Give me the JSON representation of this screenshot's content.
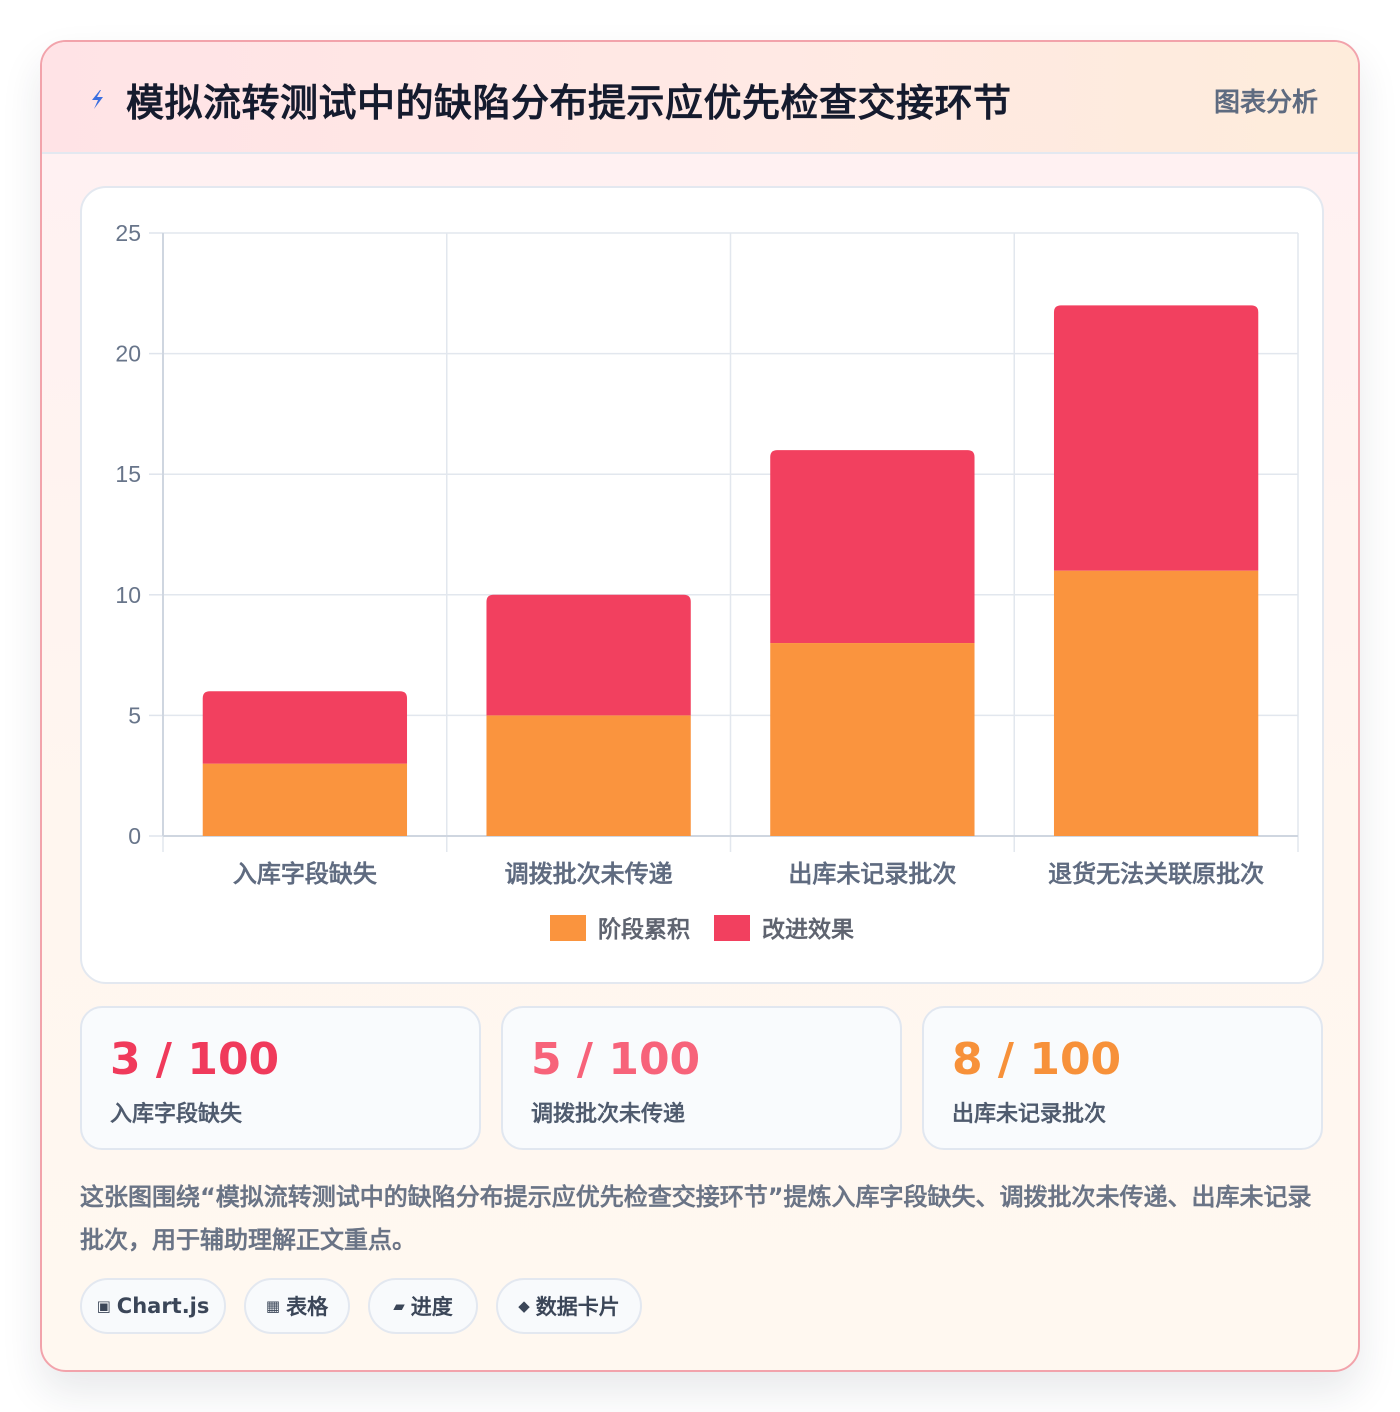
{
  "header": {
    "icon": "lightning-bolt-icon",
    "title": "模拟流转测试中的缺陷分布提示应优先检查交接环节",
    "tag": "图表分析"
  },
  "chart_data": {
    "type": "bar",
    "stacked": true,
    "categories": [
      "入库字段缺失",
      "调拨批次未传递",
      "出库未记录批次",
      "退货无法关联原批次"
    ],
    "series": [
      {
        "name": "阶段累积",
        "values": [
          3,
          5,
          8,
          11
        ],
        "color": "#fa943e"
      },
      {
        "name": "改进效果",
        "values": [
          3,
          5,
          8,
          11
        ],
        "color": "#f2405f"
      }
    ],
    "yticks": [
      "0",
      "5",
      "10",
      "15",
      "20",
      "25"
    ],
    "ylim": [
      0,
      25
    ],
    "grid": true,
    "legend": "bottom"
  },
  "stats": [
    {
      "value": "3 / 100",
      "label": "入库字段缺失",
      "color": "#f03a5b"
    },
    {
      "value": "5 / 100",
      "label": "调拨批次未传递",
      "color": "#f7637a"
    },
    {
      "value": "8 / 100",
      "label": "出库未记录批次",
      "color": "#f7913a"
    }
  ],
  "description": "这张图围绕“模拟流转测试中的缺陷分布提示应优先检查交接环节”提炼入库字段缺失、调拨批次未传递、出库未记录批次，用于辅助理解正文重点。",
  "chips": [
    {
      "icon": "chart-square-icon",
      "glyph": "▣",
      "label": "Chart.js"
    },
    {
      "icon": "table-grid-icon",
      "glyph": "▦",
      "label": "表格"
    },
    {
      "icon": "progress-icon",
      "glyph": "▰",
      "label": "进度"
    },
    {
      "icon": "diamond-icon",
      "glyph": "◆",
      "label": "数据卡片"
    }
  ]
}
